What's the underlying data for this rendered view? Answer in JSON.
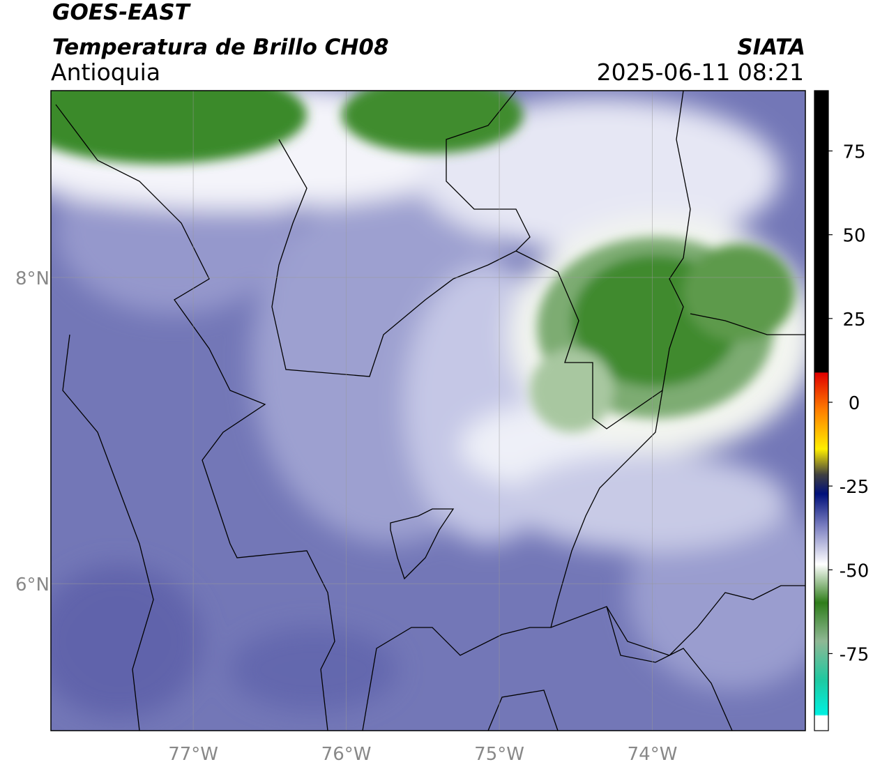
{
  "header": {
    "title": "GOES-EAST",
    "subtitle": "Temperatura de Brillo CH08",
    "region": "Antioquia",
    "source": "SIATA",
    "timestamp": "2025-06-11 08:21"
  },
  "chart_data": {
    "type": "map",
    "xlim": [
      -77.93,
      -73.0
    ],
    "ylim": [
      5.04,
      9.22
    ],
    "xticks": [
      {
        "value": -77,
        "label": "77°W"
      },
      {
        "value": -76,
        "label": "76°W"
      },
      {
        "value": -75,
        "label": "75°W"
      },
      {
        "value": -74,
        "label": "74°W"
      }
    ],
    "yticks": [
      {
        "value": 6,
        "label": "6°N"
      },
      {
        "value": 8,
        "label": "8°N"
      }
    ],
    "grid": true,
    "colorbar": {
      "lim": [
        -98,
        93
      ],
      "ticks": [
        75,
        50,
        25,
        0,
        -25,
        -50,
        -75
      ]
    }
  }
}
